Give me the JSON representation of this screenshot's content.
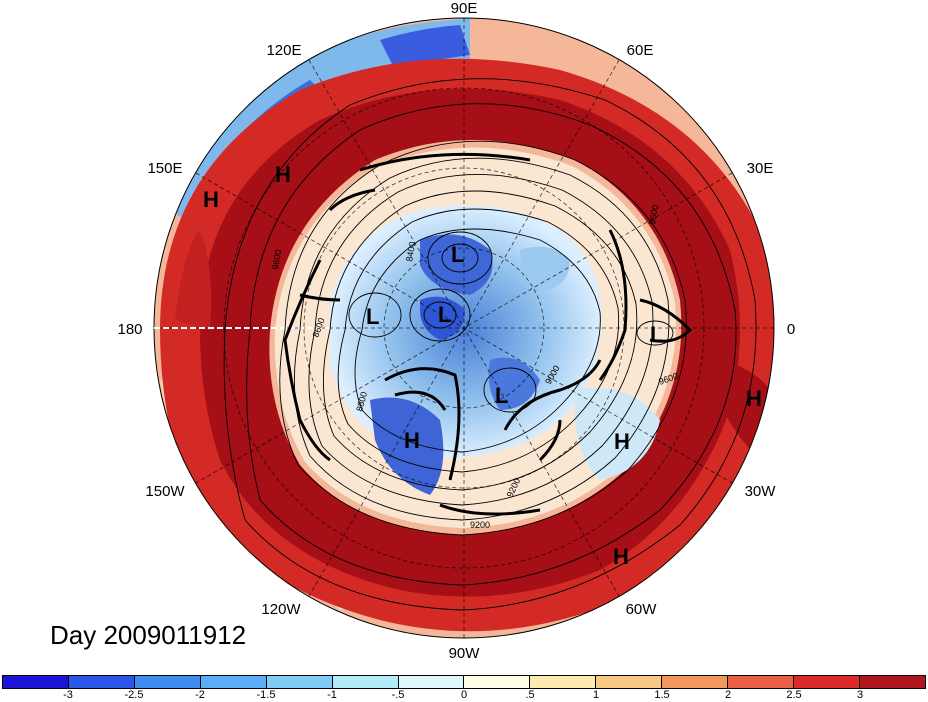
{
  "map": {
    "projection": "polar stereographic, north pole",
    "longitude_labels": {
      "top": "90E",
      "top_left": "120E",
      "top_right": "60E",
      "upper_left": "150E",
      "upper_right": "30E",
      "left": "180",
      "right": "0",
      "lower_left": "150W",
      "lower_right": "30W",
      "bottom_left": "120W",
      "bottom_right": "60W",
      "bottom": "90W"
    },
    "pressure_centers": [
      {
        "label": "H"
      },
      {
        "label": "H"
      },
      {
        "label": "L"
      },
      {
        "label": "L"
      },
      {
        "label": "L"
      },
      {
        "label": "L"
      },
      {
        "label": "L"
      },
      {
        "label": "H"
      },
      {
        "label": "H"
      },
      {
        "label": "H"
      },
      {
        "label": "H"
      }
    ],
    "contour_labels": [
      "8400",
      "8600",
      "8800",
      "9000",
      "9200",
      "9600",
      "9600",
      "9200",
      "9600"
    ],
    "colors": {
      "deep_red": "#a50f15",
      "red": "#d7301f",
      "orange": "#f4a582",
      "pale": "#fdf0d0",
      "light_blue": "#c6e9f8",
      "blue": "#4393c3",
      "deep_blue": "#1f3fd1"
    }
  },
  "day_label": "Day 2009011912",
  "colorbar": {
    "colors": [
      "#1c14d6",
      "#2a57e8",
      "#3d8ef0",
      "#5aaef5",
      "#7fcdf7",
      "#b3ecf9",
      "#e0f8fb",
      "#fffde8",
      "#fdeab0",
      "#f8c884",
      "#f2975e",
      "#ec5f45",
      "#dc2a2a",
      "#b0151e"
    ],
    "tick_labels": [
      "-3",
      "-2.5",
      "-2",
      "-1.5",
      "-1",
      "-.5",
      "0",
      ".5",
      "1",
      "1.5",
      "2",
      "2.5",
      "3"
    ]
  }
}
